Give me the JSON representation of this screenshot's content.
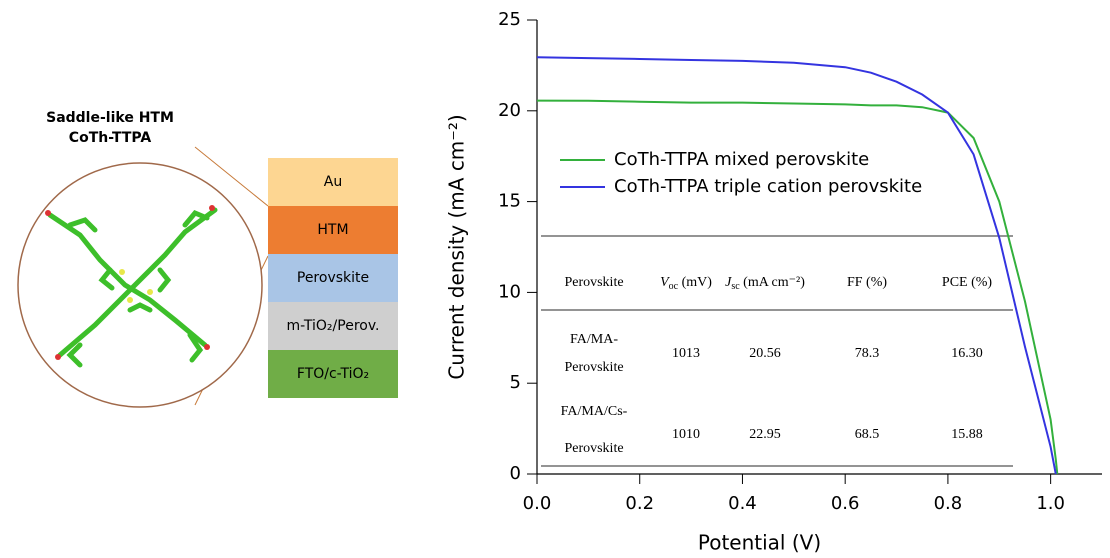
{
  "diagram": {
    "title": [
      "Saddle-like HTM",
      "CoTh-TTPA"
    ],
    "layers": [
      {
        "label": "Au",
        "color": "#fdd692"
      },
      {
        "label": "HTM",
        "color": "#ed7d31"
      },
      {
        "label": "Perovskite",
        "color": "#a9c5e6"
      },
      {
        "label": "m-TiO₂/Perov.",
        "color": "#cfcfcf"
      },
      {
        "label": "FTO/c-TiO₂",
        "color": "#70ad47"
      }
    ]
  },
  "chart_data": {
    "type": "line",
    "xlabel": "Potential (V)",
    "ylabel": "Current density (mA cm⁻²)",
    "x": [
      0,
      0.1,
      0.2,
      0.3,
      0.4,
      0.5,
      0.6,
      0.65,
      0.7,
      0.75,
      0.8,
      0.85,
      0.9,
      0.95,
      1.0,
      1.01,
      1.013
    ],
    "series": [
      {
        "name": "CoTh-TTPA mixed perovskite",
        "color": "#33b03c",
        "values": [
          20.56,
          20.55,
          20.5,
          20.45,
          20.45,
          20.4,
          20.35,
          20.3,
          20.3,
          20.2,
          19.9,
          18.5,
          15.0,
          9.5,
          3.0,
          0.8,
          0
        ]
      },
      {
        "name": "CoTh-TTPA triple cation perovskite",
        "color": "#3434e0",
        "values": [
          22.95,
          22.9,
          22.85,
          22.8,
          22.75,
          22.65,
          22.4,
          22.1,
          21.6,
          20.9,
          19.9,
          17.6,
          13.0,
          7.0,
          1.5,
          0,
          null
        ]
      }
    ],
    "xlim": [
      0,
      1.1
    ],
    "ylim": [
      0,
      25
    ],
    "xticks": [
      {
        "value": 0,
        "label": "0.0"
      },
      0.2,
      0.4,
      0.6,
      0.8,
      {
        "value": 1,
        "label": "1.0"
      }
    ],
    "yticks": [
      0,
      5,
      10,
      15,
      20,
      25
    ]
  },
  "table": {
    "header": [
      {
        "text": "Perovskite"
      },
      {
        "symbol": "V",
        "sub": "oc",
        "unit": " (mV)"
      },
      {
        "symbol": "J",
        "sub": "sc",
        "unit": " (mA cm⁻²)"
      },
      {
        "text": "FF (%)"
      },
      {
        "text": "PCE (%)"
      }
    ],
    "rows": [
      [
        [
          "FA/MA-",
          "Perovskite"
        ],
        "1013",
        "20.56",
        "78.3",
        "16.30"
      ],
      [
        [
          "FA/MA/Cs-",
          "Perovskite"
        ],
        "1010",
        "22.95",
        "68.5",
        "15.88"
      ]
    ]
  }
}
